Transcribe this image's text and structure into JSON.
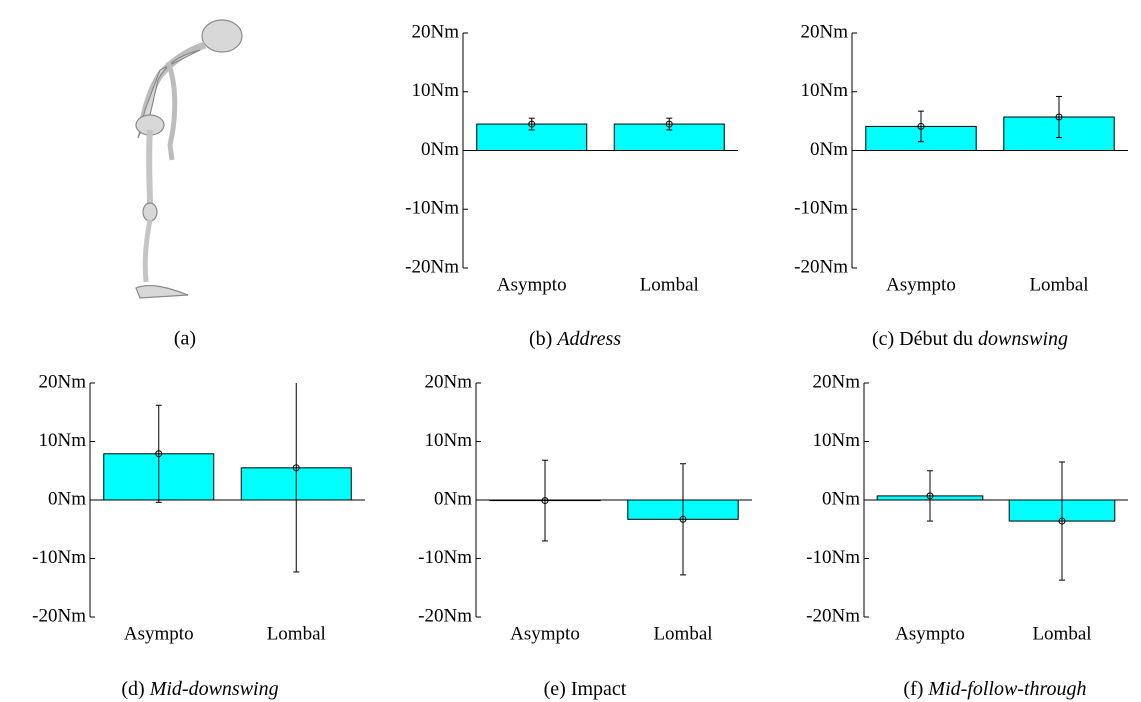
{
  "panel_a": {
    "caption": "(a)"
  },
  "chart_data": [
    {
      "type": "bar",
      "caption_label": "(b)",
      "caption": [
        "Address"
      ],
      "caption_italic": [
        true
      ],
      "categories": [
        "Asympto",
        "Lombal"
      ],
      "values": [
        4.5,
        4.5
      ],
      "errors": [
        1.0,
        1.0
      ],
      "color": "#00ffff",
      "ylim": [
        -20,
        20
      ],
      "yticks": [
        {
          "value": -20,
          "label": "-20Nm"
        },
        {
          "value": -10,
          "label": "-10Nm"
        },
        {
          "value": 0,
          "label": "0Nm"
        },
        {
          "value": 10,
          "label": "10Nm"
        },
        {
          "value": 20,
          "label": "20Nm"
        }
      ]
    },
    {
      "type": "bar",
      "caption_label": "(c)",
      "caption": [
        "Début du",
        "downswing"
      ],
      "caption_italic": [
        false,
        true
      ],
      "categories": [
        "Asympto",
        "Lombal"
      ],
      "values": [
        4.1,
        5.7
      ],
      "errors": [
        2.6,
        3.5
      ],
      "color": "#00ffff",
      "ylim": [
        -20,
        20
      ],
      "yticks": [
        {
          "value": -20,
          "label": "-20Nm"
        },
        {
          "value": -10,
          "label": "-10Nm"
        },
        {
          "value": 0,
          "label": "0Nm"
        },
        {
          "value": 10,
          "label": "10Nm"
        },
        {
          "value": 20,
          "label": "20Nm"
        }
      ]
    },
    {
      "type": "bar",
      "caption_label": "(d)",
      "caption": [
        "Mid-downswing"
      ],
      "caption_italic": [
        true
      ],
      "categories": [
        "Asympto",
        "Lombal"
      ],
      "values": [
        7.9,
        5.5
      ],
      "errors": [
        8.3,
        17.8
      ],
      "color": "#00ffff",
      "ylim": [
        -20,
        20
      ],
      "yticks": [
        {
          "value": -20,
          "label": "-20Nm"
        },
        {
          "value": -10,
          "label": "-10Nm"
        },
        {
          "value": 0,
          "label": "0Nm"
        },
        {
          "value": 10,
          "label": "10Nm"
        },
        {
          "value": 20,
          "label": "20Nm"
        }
      ]
    },
    {
      "type": "bar",
      "caption_label": "(e)",
      "caption": [
        "Impact"
      ],
      "caption_italic": [
        false
      ],
      "categories": [
        "Asympto",
        "Lombal"
      ],
      "values": [
        -0.1,
        -3.3
      ],
      "errors": [
        6.9,
        9.5
      ],
      "color": "#00ffff",
      "ylim": [
        -20,
        20
      ],
      "yticks": [
        {
          "value": -20,
          "label": "-20Nm"
        },
        {
          "value": -10,
          "label": "-10Nm"
        },
        {
          "value": 0,
          "label": "0Nm"
        },
        {
          "value": 10,
          "label": "10Nm"
        },
        {
          "value": 20,
          "label": "20Nm"
        }
      ]
    },
    {
      "type": "bar",
      "caption_label": "(f)",
      "caption": [
        "Mid-follow-through"
      ],
      "caption_italic": [
        true
      ],
      "categories": [
        "Asympto",
        "Lombal"
      ],
      "values": [
        0.7,
        -3.6
      ],
      "errors": [
        4.3,
        10.1
      ],
      "color": "#00ffff",
      "ylim": [
        -20,
        20
      ],
      "yticks": [
        {
          "value": -20,
          "label": "-20Nm"
        },
        {
          "value": -10,
          "label": "-10Nm"
        },
        {
          "value": 0,
          "label": "0Nm"
        },
        {
          "value": 10,
          "label": "10Nm"
        },
        {
          "value": 20,
          "label": "20Nm"
        }
      ]
    }
  ]
}
